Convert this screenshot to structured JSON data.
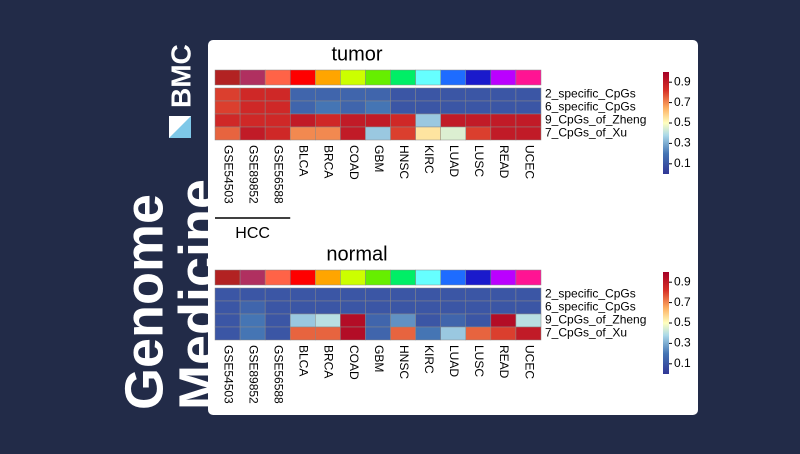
{
  "journal": {
    "name_lines": [
      "Genome",
      "Medicine"
    ],
    "publisher": "BMC"
  },
  "chart_data": [
    {
      "type": "heatmap",
      "title": "tumor",
      "annotation": "HCC",
      "categories": [
        "GSE54503",
        "GSE89852",
        "GSE56588",
        "BLCA",
        "BRCA",
        "COAD",
        "GBM",
        "HNSC",
        "KIRC",
        "LUAD",
        "LUSC",
        "READ",
        "UCEC"
      ],
      "column_colors": [
        "#b22222",
        "#b03060",
        "#ff6347",
        "#ff0000",
        "#ffa500",
        "#ccff00",
        "#66ee00",
        "#00ee66",
        "#66ffff",
        "#1e6cff",
        "#1a1acc",
        "#bb00ff",
        "#ff1493"
      ],
      "rows": [
        "2_specific_CpGs",
        "6_specific_CpGs",
        "9_CpGs_of_Zheng",
        "7_CpGs_of_Xu"
      ],
      "values": [
        [
          0.8,
          0.85,
          0.85,
          0.15,
          0.15,
          0.15,
          0.15,
          0.1,
          0.1,
          0.1,
          0.1,
          0.1,
          0.1
        ],
        [
          0.8,
          0.85,
          0.85,
          0.15,
          0.2,
          0.15,
          0.2,
          0.1,
          0.1,
          0.1,
          0.1,
          0.1,
          0.1
        ],
        [
          0.85,
          0.85,
          0.85,
          0.9,
          0.85,
          0.9,
          0.9,
          0.85,
          0.35,
          0.9,
          0.9,
          0.9,
          0.9
        ],
        [
          0.75,
          0.9,
          0.85,
          0.7,
          0.7,
          0.9,
          0.35,
          0.8,
          0.55,
          0.45,
          0.8,
          0.9,
          0.9
        ]
      ],
      "clim": [
        0,
        1
      ],
      "cticks": [
        0.1,
        0.3,
        0.5,
        0.7,
        0.9
      ]
    },
    {
      "type": "heatmap",
      "title": "normal",
      "categories": [
        "GSE54503",
        "GSE89852",
        "GSE56588",
        "BLCA",
        "BRCA",
        "COAD",
        "GBM",
        "HNSC",
        "KIRC",
        "LUAD",
        "LUSC",
        "READ",
        "UCEC"
      ],
      "column_colors": [
        "#b22222",
        "#b03060",
        "#ff6347",
        "#ff0000",
        "#ffa500",
        "#ccff00",
        "#66ee00",
        "#00ee66",
        "#66ffff",
        "#1e6cff",
        "#1a1acc",
        "#bb00ff",
        "#ff1493"
      ],
      "rows": [
        "2_specific_CpGs",
        "6_specific_CpGs",
        "9_CpGs_of_Zheng",
        "7_CpGs_of_Xu"
      ],
      "values": [
        [
          0.1,
          0.1,
          0.1,
          0.1,
          0.1,
          0.1,
          0.1,
          0.1,
          0.1,
          0.1,
          0.1,
          0.1,
          0.1
        ],
        [
          0.1,
          0.15,
          0.1,
          0.1,
          0.1,
          0.1,
          0.1,
          0.1,
          0.1,
          0.1,
          0.1,
          0.1,
          0.1
        ],
        [
          0.1,
          0.2,
          0.1,
          0.35,
          0.4,
          0.95,
          0.15,
          0.25,
          0.1,
          0.15,
          0.1,
          0.95,
          0.4
        ],
        [
          0.1,
          0.2,
          0.1,
          0.75,
          0.75,
          0.95,
          0.15,
          0.75,
          0.2,
          0.35,
          0.75,
          0.8,
          0.9
        ]
      ],
      "clim": [
        0,
        1
      ],
      "cticks": [
        0.1,
        0.3,
        0.5,
        0.7,
        0.9
      ]
    }
  ]
}
